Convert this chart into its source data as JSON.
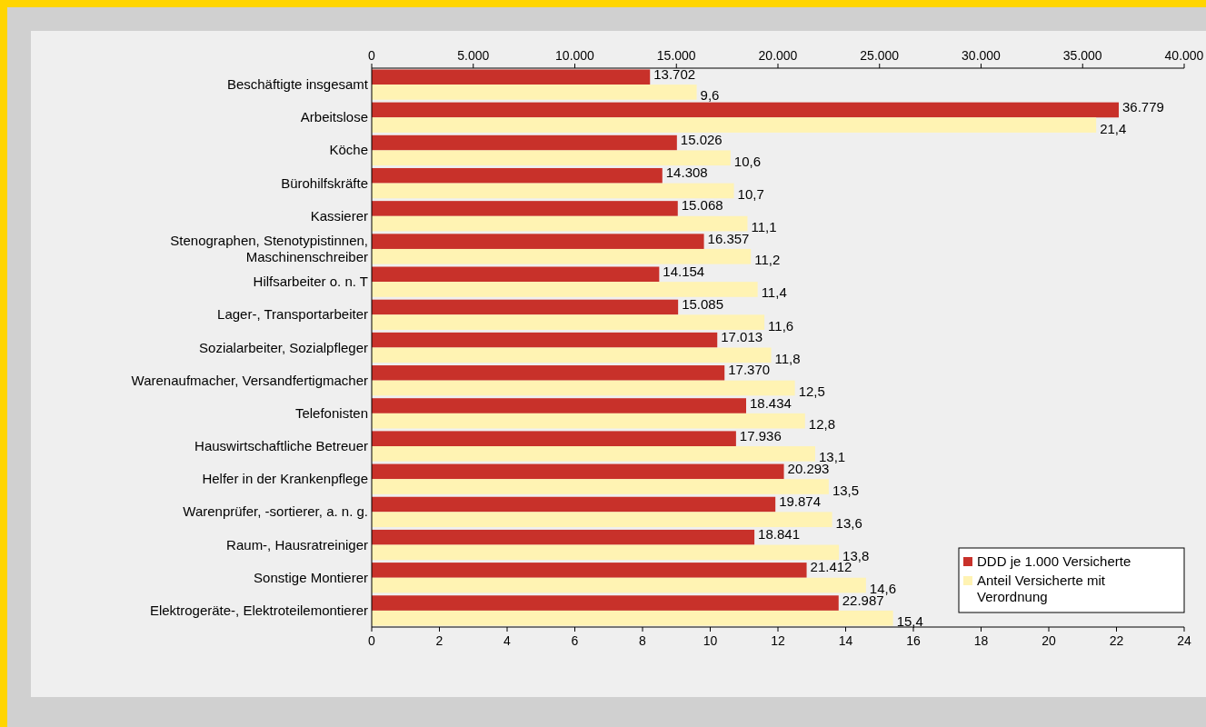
{
  "chart_data": {
    "type": "bar",
    "orientation": "horizontal",
    "categories": [
      "Beschäftigte insgesamt",
      "Arbeitslose",
      "Köche",
      "Bürohilfskräfte",
      "Kassierer",
      "Stenographen, Stenotypistinnen, Maschinenschreiber",
      "Hilfsarbeiter o. n. T",
      "Lager-, Transportarbeiter",
      "Sozialarbeiter, Sozialpfleger",
      "Warenaufmacher, Versandfertigmacher",
      "Telefonisten",
      "Hauswirtschaftliche Betreuer",
      "Helfer in der Krankenpflege",
      "Warenprüfer, -sortierer, a. n. g.",
      "Raum-, Hausratreiniger",
      "Sonstige Montierer",
      "Elektrogeräte-, Elektroteilemontierer"
    ],
    "series": [
      {
        "name": "DDD je 1.000 Versicherte",
        "color": "#c8312a",
        "axis": "x2",
        "values": [
          13702,
          36779,
          15026,
          14308,
          15068,
          16357,
          14154,
          15085,
          17013,
          17370,
          18434,
          17936,
          20293,
          19874,
          18841,
          21412,
          22987
        ],
        "value_labels": [
          "13.702",
          "36.779",
          "15.026",
          "14.308",
          "15.068",
          "16.357",
          "14.154",
          "15.085",
          "17.013",
          "17.370",
          "18.434",
          "17.936",
          "20.293",
          "19.874",
          "18.841",
          "21.412",
          "22.987"
        ]
      },
      {
        "name": "Anteil Versicherte mit Verordnung",
        "color": "#fff3b3",
        "values": [
          9.6,
          21.4,
          10.6,
          10.7,
          11.1,
          11.2,
          11.4,
          11.6,
          11.8,
          12.5,
          12.8,
          13.1,
          13.5,
          13.6,
          13.8,
          14.6,
          15.4
        ],
        "value_labels": [
          "9,6",
          "21,4",
          "10,6",
          "10,7",
          "11,1",
          "11,2",
          "11,4",
          "11,6",
          "11,8",
          "12,5",
          "12,8",
          "13,1",
          "13,5",
          "13,6",
          "13,8",
          "14,6",
          "15,4"
        ]
      }
    ],
    "xlim": [
      0,
      24
    ],
    "xticks": [
      0,
      2,
      4,
      6,
      8,
      10,
      12,
      14,
      16,
      18,
      20,
      22,
      24
    ],
    "x2lim": [
      0,
      40000
    ],
    "x2ticks": [
      {
        "value": 0,
        "label": "0"
      },
      {
        "value": 5000,
        "label": "5.000"
      },
      {
        "value": 10000,
        "label": "10.000"
      },
      {
        "value": 15000,
        "label": "15.000"
      },
      {
        "value": 20000,
        "label": "20.000"
      },
      {
        "value": 25000,
        "label": "25.000"
      },
      {
        "value": 30000,
        "label": "30.000"
      },
      {
        "value": 35000,
        "label": "35.000"
      },
      {
        "value": 40000,
        "label": "40.000"
      }
    ],
    "legend": "bottom right",
    "grid": false
  }
}
